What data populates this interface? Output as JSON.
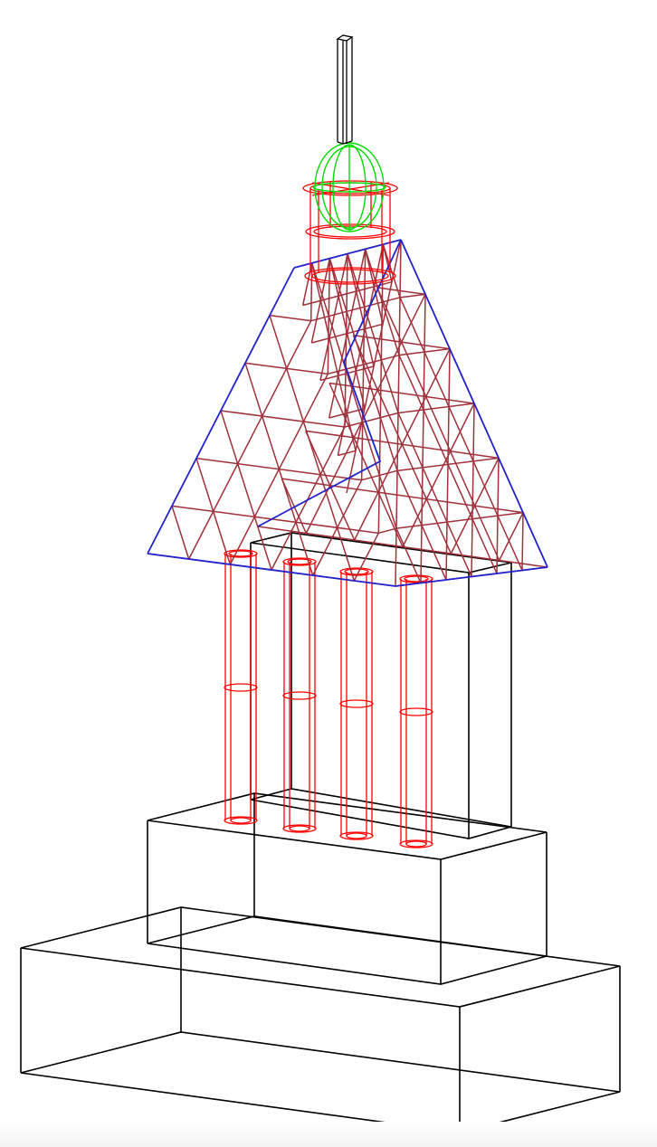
{
  "colors": {
    "background": "#ffffff",
    "structure": "#000000",
    "columns": "#ff0000",
    "cupola": "#ff0000",
    "dome": "#00dd00",
    "roof_edge": "#2222cc",
    "roof_truss": "#a0303a"
  },
  "components": [
    {
      "name": "base-block",
      "color": "structure"
    },
    {
      "name": "plinth-block",
      "color": "structure"
    },
    {
      "name": "core-block",
      "color": "structure"
    },
    {
      "name": "column",
      "color": "columns",
      "count": 4
    },
    {
      "name": "pyramid-roof-truss",
      "color": "roof_truss"
    },
    {
      "name": "roof-edge",
      "color": "roof_edge"
    },
    {
      "name": "cupola-drum",
      "color": "cupola"
    },
    {
      "name": "dome",
      "color": "dome"
    },
    {
      "name": "spire",
      "color": "structure"
    }
  ]
}
